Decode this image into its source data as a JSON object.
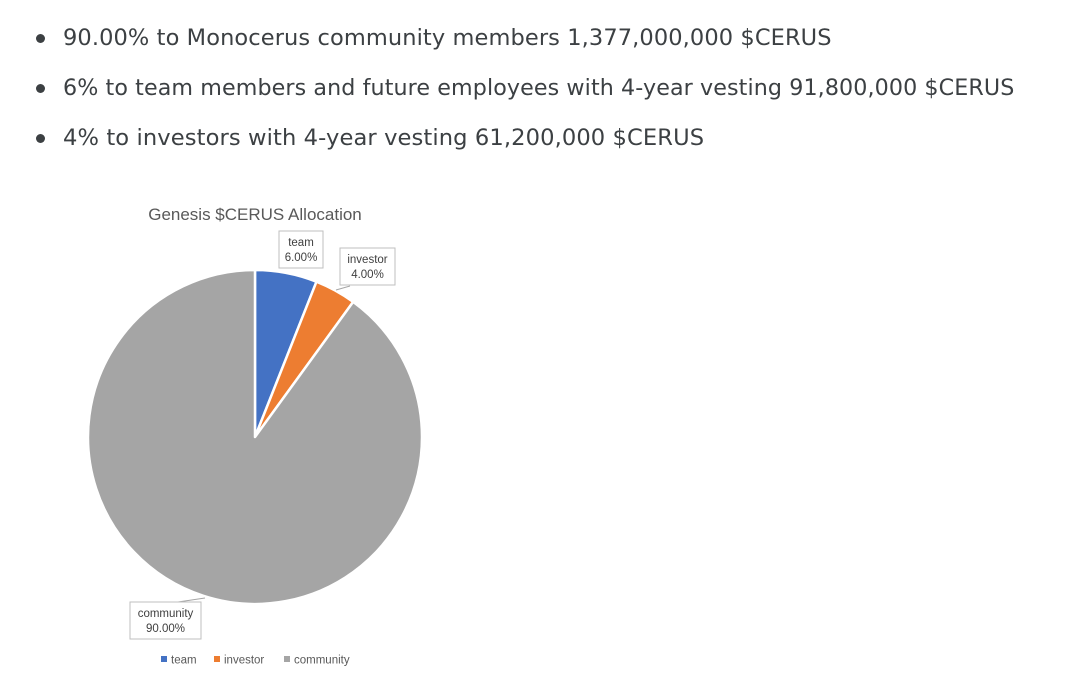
{
  "bullets": [
    {
      "text": "90.00% to Monocerus community members 1,377,000,000 $CERUS"
    },
    {
      "text": "6% to team members and future employees with 4-year vesting 91,800,000 $CERUS"
    },
    {
      "text": "4% to investors with 4-year vesting 61,200,000 $CERUS"
    }
  ],
  "chart_data": {
    "type": "pie",
    "title": "Genesis $CERUS Allocation",
    "categories": [
      "team",
      "investor",
      "community"
    ],
    "values": [
      6.0,
      4.0,
      90.0
    ],
    "value_labels": [
      "6.00%",
      "4.00%",
      "90.00%"
    ],
    "colors": [
      "#4472c4",
      "#ed7d31",
      "#a5a5a5"
    ],
    "legend_position": "bottom",
    "start_angle": "12 o'clock, clockwise"
  }
}
